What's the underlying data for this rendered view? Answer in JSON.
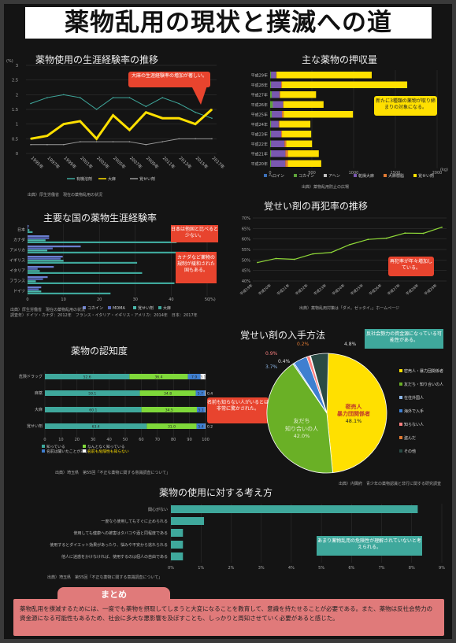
{
  "poster_title": "薬物乱用の現状と撲滅への道",
  "lifetime": {
    "title": "薬物使用の生涯経験率の推移",
    "unit": "(%)",
    "years": [
      "1995年",
      "1997年",
      "1999年",
      "2001年",
      "2003年",
      "2005年",
      "2007年",
      "2009年",
      "2011年",
      "2013年",
      "2015年",
      "2017年"
    ],
    "ylim": [
      0,
      3
    ],
    "yticks": [
      "3",
      "2.5",
      "2",
      "1.5",
      "1",
      "0.5",
      "0"
    ],
    "series": [
      {
        "name": "有機溶剤",
        "color": "#3fa89c",
        "values": [
          1.7,
          1.9,
          2.0,
          1.9,
          1.5,
          1.9,
          1.9,
          1.6,
          1.9,
          1.7,
          1.4,
          1.2
        ]
      },
      {
        "name": "大麻",
        "color": "#ffe000",
        "values": [
          0.5,
          0.6,
          1.0,
          1.1,
          0.5,
          1.3,
          0.8,
          1.4,
          1.2,
          1.2,
          1.0,
          1.5
        ]
      },
      {
        "name": "覚せい剤",
        "color": "#9a9a9a",
        "values": [
          0.3,
          0.3,
          0.3,
          0.4,
          0.4,
          0.4,
          0.4,
          0.3,
          0.4,
          0.5,
          0.5,
          0.5
        ]
      }
    ],
    "callout": "大麻の生涯経験率の増加が著しい。",
    "source": "出典）厚生労働省　現在の薬物乱用の状況"
  },
  "seizure": {
    "title": "主な薬物の押収量",
    "years": [
      "平成29年",
      "平成28年",
      "平成27年",
      "平成26年",
      "平成25年",
      "平成24年",
      "平成23年",
      "平成22年",
      "平成21年",
      "平成20年"
    ],
    "xticks": [
      "0",
      "500",
      "1000",
      "1500",
      "2000"
    ],
    "unit": "(kg)",
    "legend": [
      "ヘロイン",
      "コカイン",
      "アヘン",
      "乾燥大麻",
      "大麻樹脂",
      "覚せい剤"
    ],
    "colors": [
      "#3b6fb6",
      "#5da33a",
      "#bfbfbf",
      "#7a58b0",
      "#e07a33",
      "#ffe000"
    ],
    "stacks": [
      [
        0,
        10,
        2,
        60,
        5,
        1140
      ],
      [
        0,
        10,
        2,
        120,
        10,
        1500
      ],
      [
        0,
        20,
        2,
        90,
        8,
        430
      ],
      [
        0,
        30,
        5,
        120,
        5,
        480
      ],
      [
        0,
        20,
        2,
        120,
        20,
        830
      ],
      [
        0,
        10,
        2,
        90,
        10,
        370
      ],
      [
        0,
        10,
        2,
        120,
        10,
        350
      ],
      [
        0,
        10,
        2,
        160,
        20,
        310
      ],
      [
        0,
        10,
        3,
        170,
        30,
        370
      ],
      [
        0,
        10,
        2,
        170,
        30,
        400
      ]
    ],
    "callout": "新たに3種類の薬物が取り締まりの対象になる。",
    "source": "出典）薬物乱用防止の広場"
  },
  "countries": {
    "title": "主要な国の薬物生涯経験率",
    "names": [
      "日本",
      "カナダ",
      "アメリカ",
      "イギリス",
      "イタリア",
      "フランス",
      "ドイツ"
    ],
    "xticks": [
      "0",
      "10",
      "20",
      "30",
      "40",
      "50"
    ],
    "unit": "(%)",
    "legend": [
      "コカイン",
      "MDMA",
      "覚せい剤",
      "大麻"
    ],
    "colors": [
      "#6a7fd0",
      "#5a6bbd",
      "#4bb7aa",
      "#3fa89c"
    ],
    "values": [
      [
        0.3,
        0.2,
        0.5,
        1.4
      ],
      [
        6.0,
        6.0,
        5.0,
        41.5
      ],
      [
        14.8,
        7.0,
        5.5,
        44.2
      ],
      [
        9.8,
        9.2,
        10.0,
        30.5
      ],
      [
        7.3,
        2.8,
        3.4,
        31.9
      ],
      [
        5.6,
        4.3,
        2.3,
        40.9
      ],
      [
        3.8,
        3.1,
        3.8,
        23.1
      ]
    ],
    "callout1": "日本は他国と比べると少ない。",
    "callout2": "カナダなど薬物の規制が緩和された国もある。",
    "source1": "出典）厚生労働省　現在の薬物乱用の状況",
    "source2": "調査年）ドイツ・カナダ：2012年　フランス・イタリア・イギリス・アメリカ：2014年　日本：2017年"
  },
  "recidivism": {
    "title": "覚せい剤の再犯率の推移",
    "years": [
      "平成19年",
      "平成20年",
      "平成21年",
      "平成22年",
      "平成23年",
      "平成24年",
      "平成25年",
      "平成26年",
      "平成27年",
      "平成28年",
      "平成29年"
    ],
    "yticks": [
      "70%",
      "65%",
      "60%",
      "55%",
      "50%",
      "45%",
      "40%"
    ],
    "ylim": [
      40,
      70
    ],
    "values": [
      48.8,
      50.7,
      50.3,
      52.9,
      53.6,
      57.3,
      59.8,
      60.4,
      62.8,
      62.7,
      65.6
    ],
    "color": "#8fd838",
    "callout": "再犯率が年々増加している。",
    "source": "出典）薬物乱用対策は「ダメ。ゼッタイ。」ホームページ"
  },
  "awareness": {
    "title": "薬物の認知度",
    "rows": [
      "危険ドラッグ",
      "麻薬",
      "大麻",
      "覚せい剤"
    ],
    "stacks": [
      [
        52.6,
        36.4,
        7.9,
        3.1
      ],
      [
        59.1,
        34.8,
        5.7,
        0.4
      ],
      [
        60.1,
        34.5,
        5.1,
        0.3
      ],
      [
        63.4,
        31.0,
        5.4,
        0.2
      ]
    ],
    "labels": [
      [
        "52.6",
        "36.4",
        "7.9",
        "3.1"
      ],
      [
        "59.1",
        "34.8",
        "5.7",
        "0.4"
      ],
      [
        "60.1",
        "34.5",
        "5.1",
        "0.3"
      ],
      [
        "63.4",
        "31.0",
        "5.4",
        "0.2"
      ]
    ],
    "colors": [
      "#3fa89c",
      "#7fd83a",
      "#3f7fd0",
      "#ffffff"
    ],
    "xticks": [
      "0",
      "10",
      "20",
      "30",
      "40",
      "50",
      "60",
      "70",
      "80",
      "90",
      "100"
    ],
    "legend": [
      "知っている",
      "なんとなく知っている",
      "名前は聞いたことがある",
      "名前も危険性も知らない"
    ],
    "callout": "名前も知らない人がいるとは非常に驚かされた。",
    "source": "出典）埼玉県　第55回「不正な薬物に関する意識調査について」"
  },
  "sources": {
    "title": "覚せい剤の入手方法",
    "slices": [
      {
        "label": "密売人・暴力団関係者",
        "pct": 48.1,
        "color": "#ffe000"
      },
      {
        "label": "友だち・知り合いの人",
        "pct": 42.0,
        "color": "#6ab026"
      },
      {
        "label": "在住外国人",
        "pct": 0.4,
        "color": "#8fb8e8"
      },
      {
        "label": "海外で入手",
        "pct": 3.7,
        "color": "#3f7fd0"
      },
      {
        "label": "知らない人",
        "pct": 0.9,
        "color": "#ff8080"
      },
      {
        "label": "盗んだ",
        "pct": 0.2,
        "color": "#e07a33"
      },
      {
        "label": "その他",
        "pct": 4.8,
        "color": "#2a4a44"
      }
    ],
    "inner1": "密売人",
    "inner2": "暴力団関係者",
    "inner3": "48.1%",
    "inner4": "友だち",
    "inner5": "知り合いの人",
    "inner6": "42.0%",
    "pct_labels": [
      "4.8%",
      "0.2%",
      "0.9%",
      "3.7%",
      "0.4%"
    ],
    "callout": "反社会勢力の資金源になっている可能性がある。",
    "legend": [
      "密売人・暴力団関係者",
      "友だち・知り合いの人",
      "在住外国人",
      "海外で入手",
      "知らない人",
      "盗んだ",
      "その他"
    ],
    "source": "出典）内閣府　青少年の薬物認識と非行に関する研究調査"
  },
  "attitudes": {
    "title": "薬物の使用に対する考え方",
    "items": [
      "関心がない",
      "一度なら使用してもすぐに止められる",
      "使用しても健康への被害はタバコや酒と同程度である",
      "使用するとダイエット効果があったり、悩みや不安から逃れられる",
      "他人に迷惑をかけなければ、使用するのは個人の自由である"
    ],
    "values": [
      8.2,
      1.1,
      0.4,
      0.4,
      0.4
    ],
    "xticks": [
      "0%",
      "1%",
      "2%",
      "3%",
      "4%",
      "5%",
      "6%",
      "7%",
      "8%",
      "9%"
    ],
    "callout": "あまり薬物乱用の危険性が理解されていないと考えられる。",
    "source": "出典）埼玉県　第55回「不正な薬物に関する意識調査について」"
  },
  "summary": {
    "title": "まとめ",
    "body": "薬物乱用を撲滅するためには、一度でも薬物を摂取してしまうと大変になることを教育して、意識を持たせることが必要である。また、薬物は反社会勢力の資金源になる可能性もあるため、社会に多大な悪影響を及ぼすことも、しっかりと周知させていく必要があると感じた。"
  }
}
